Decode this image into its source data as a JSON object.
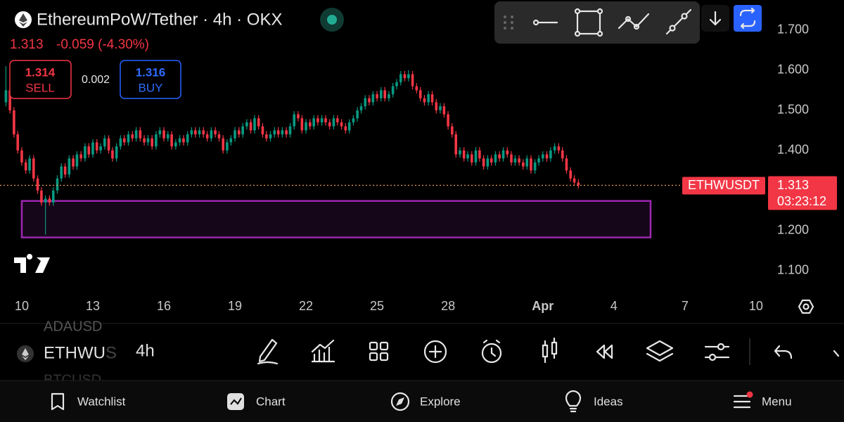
{
  "header": {
    "title": "EthereumPoW/Tether · 4h · OKX",
    "last": "1.313",
    "change": "-0.059 (-4.30%)",
    "sell_price": "1.314",
    "sell": "SELL",
    "spread": "0.002",
    "buy_price": "1.316",
    "buy": "BUY"
  },
  "chart_data": {
    "type": "candlestick",
    "symbol_label": "ETHWUSDT",
    "countdown": "03:23:12",
    "last_price": 1.313,
    "up_color": "#089981",
    "down_color": "#f23645",
    "xlim": [
      9.08,
      41.45
    ],
    "ylim": [
      1.042,
      1.775
    ],
    "xticks": [
      10,
      13,
      16,
      19,
      22,
      25,
      28,
      {
        "value": 32,
        "label": "Apr"
      },
      {
        "value": 35,
        "label": "4"
      },
      {
        "value": 38,
        "label": "7"
      },
      {
        "value": 41,
        "label": "10"
      }
    ],
    "yticks": [
      {
        "value": 1.1,
        "label": "1.100"
      },
      {
        "value": 1.2,
        "label": "1.200"
      },
      {
        "value": 1.3,
        "label": "1.300"
      },
      {
        "value": 1.4,
        "label": "1.400"
      },
      {
        "value": 1.5,
        "label": "1.500"
      },
      {
        "value": 1.6,
        "label": "1.600"
      },
      {
        "value": 1.7,
        "label": "1.700"
      }
    ],
    "zone": {
      "x0": 10,
      "x1": 36.55,
      "y0": 1.183,
      "y1": 1.274
    },
    "candles": [
      [
        9.33,
        1.52,
        1.61,
        1.51,
        1.55
      ],
      [
        9.5,
        1.55,
        1.558,
        1.492,
        1.5
      ],
      [
        9.67,
        1.5,
        1.508,
        1.432,
        1.44
      ],
      [
        9.83,
        1.44,
        1.448,
        1.392,
        1.4
      ],
      [
        10,
        1.4,
        1.408,
        1.362,
        1.37
      ],
      [
        10.17,
        1.37,
        1.378,
        1.342,
        1.35
      ],
      [
        10.33,
        1.35,
        1.388,
        1.342,
        1.38
      ],
      [
        10.5,
        1.38,
        1.388,
        1.322,
        1.33
      ],
      [
        10.67,
        1.33,
        1.338,
        1.292,
        1.3
      ],
      [
        10.83,
        1.3,
        1.308,
        1.262,
        1.27
      ],
      [
        11,
        1.27,
        1.288,
        1.19,
        1.28
      ],
      [
        11.17,
        1.28,
        1.288,
        1.262,
        1.27
      ],
      [
        11.33,
        1.27,
        1.308,
        1.262,
        1.3
      ],
      [
        11.5,
        1.3,
        1.338,
        1.292,
        1.33
      ],
      [
        11.67,
        1.33,
        1.368,
        1.322,
        1.36
      ],
      [
        11.83,
        1.36,
        1.368,
        1.332,
        1.34
      ],
      [
        12,
        1.34,
        1.388,
        1.332,
        1.38
      ],
      [
        12.17,
        1.38,
        1.388,
        1.352,
        1.36
      ],
      [
        12.33,
        1.36,
        1.398,
        1.352,
        1.39
      ],
      [
        12.5,
        1.39,
        1.398,
        1.372,
        1.38
      ],
      [
        12.67,
        1.38,
        1.418,
        1.372,
        1.41
      ],
      [
        12.83,
        1.41,
        1.418,
        1.382,
        1.39
      ],
      [
        13,
        1.39,
        1.428,
        1.382,
        1.42
      ],
      [
        13.17,
        1.42,
        1.428,
        1.392,
        1.4
      ],
      [
        13.33,
        1.4,
        1.418,
        1.392,
        1.41
      ],
      [
        13.5,
        1.41,
        1.438,
        1.402,
        1.43
      ],
      [
        13.67,
        1.43,
        1.438,
        1.392,
        1.4
      ],
      [
        13.83,
        1.4,
        1.408,
        1.372,
        1.38
      ],
      [
        14,
        1.38,
        1.418,
        1.372,
        1.41
      ],
      [
        14.17,
        1.41,
        1.438,
        1.402,
        1.43
      ],
      [
        14.33,
        1.43,
        1.438,
        1.412,
        1.42
      ],
      [
        14.5,
        1.42,
        1.448,
        1.412,
        1.44
      ],
      [
        14.67,
        1.44,
        1.448,
        1.422,
        1.43
      ],
      [
        14.83,
        1.43,
        1.458,
        1.422,
        1.45
      ],
      [
        15,
        1.45,
        1.458,
        1.422,
        1.43
      ],
      [
        15.17,
        1.43,
        1.438,
        1.412,
        1.42
      ],
      [
        15.33,
        1.42,
        1.438,
        1.412,
        1.43
      ],
      [
        15.5,
        1.43,
        1.438,
        1.402,
        1.41
      ],
      [
        15.67,
        1.41,
        1.448,
        1.402,
        1.44
      ],
      [
        15.83,
        1.44,
        1.458,
        1.432,
        1.45
      ],
      [
        16,
        1.45,
        1.458,
        1.422,
        1.43
      ],
      [
        16.17,
        1.43,
        1.448,
        1.422,
        1.44
      ],
      [
        16.33,
        1.44,
        1.448,
        1.402,
        1.41
      ],
      [
        16.5,
        1.41,
        1.428,
        1.402,
        1.42
      ],
      [
        16.67,
        1.42,
        1.438,
        1.412,
        1.43
      ],
      [
        16.83,
        1.43,
        1.438,
        1.412,
        1.42
      ],
      [
        17,
        1.42,
        1.448,
        1.412,
        1.44
      ],
      [
        17.17,
        1.44,
        1.458,
        1.432,
        1.45
      ],
      [
        17.33,
        1.45,
        1.458,
        1.432,
        1.44
      ],
      [
        17.5,
        1.44,
        1.458,
        1.432,
        1.45
      ],
      [
        17.67,
        1.45,
        1.458,
        1.432,
        1.44
      ],
      [
        17.83,
        1.44,
        1.448,
        1.422,
        1.43
      ],
      [
        18,
        1.43,
        1.458,
        1.422,
        1.45
      ],
      [
        18.17,
        1.45,
        1.458,
        1.432,
        1.44
      ],
      [
        18.33,
        1.44,
        1.448,
        1.422,
        1.43
      ],
      [
        18.5,
        1.43,
        1.438,
        1.392,
        1.4
      ],
      [
        18.67,
        1.4,
        1.428,
        1.392,
        1.42
      ],
      [
        18.83,
        1.42,
        1.438,
        1.412,
        1.43
      ],
      [
        19,
        1.43,
        1.458,
        1.422,
        1.45
      ],
      [
        19.17,
        1.45,
        1.458,
        1.432,
        1.44
      ],
      [
        19.33,
        1.44,
        1.468,
        1.432,
        1.46
      ],
      [
        19.5,
        1.46,
        1.478,
        1.452,
        1.47
      ],
      [
        19.67,
        1.47,
        1.478,
        1.442,
        1.45
      ],
      [
        19.83,
        1.45,
        1.488,
        1.442,
        1.48
      ],
      [
        20,
        1.48,
        1.488,
        1.452,
        1.46
      ],
      [
        20.17,
        1.46,
        1.468,
        1.432,
        1.44
      ],
      [
        20.33,
        1.44,
        1.448,
        1.422,
        1.43
      ],
      [
        20.5,
        1.43,
        1.448,
        1.422,
        1.44
      ],
      [
        20.67,
        1.44,
        1.458,
        1.432,
        1.45
      ],
      [
        20.83,
        1.45,
        1.458,
        1.432,
        1.44
      ],
      [
        21,
        1.44,
        1.458,
        1.432,
        1.45
      ],
      [
        21.17,
        1.45,
        1.458,
        1.432,
        1.44
      ],
      [
        21.33,
        1.44,
        1.468,
        1.432,
        1.46
      ],
      [
        21.5,
        1.46,
        1.498,
        1.452,
        1.49
      ],
      [
        21.67,
        1.49,
        1.498,
        1.472,
        1.48
      ],
      [
        21.83,
        1.48,
        1.488,
        1.442,
        1.45
      ],
      [
        22,
        1.45,
        1.478,
        1.442,
        1.47
      ],
      [
        22.17,
        1.47,
        1.478,
        1.452,
        1.46
      ],
      [
        22.33,
        1.46,
        1.488,
        1.452,
        1.48
      ],
      [
        22.5,
        1.48,
        1.488,
        1.462,
        1.47
      ],
      [
        22.67,
        1.47,
        1.488,
        1.462,
        1.48
      ],
      [
        22.83,
        1.48,
        1.488,
        1.462,
        1.47
      ],
      [
        23,
        1.47,
        1.478,
        1.452,
        1.46
      ],
      [
        23.17,
        1.46,
        1.488,
        1.452,
        1.48
      ],
      [
        23.33,
        1.48,
        1.488,
        1.462,
        1.47
      ],
      [
        23.5,
        1.47,
        1.478,
        1.452,
        1.46
      ],
      [
        23.67,
        1.46,
        1.468,
        1.442,
        1.45
      ],
      [
        23.83,
        1.45,
        1.478,
        1.442,
        1.47
      ],
      [
        24,
        1.47,
        1.488,
        1.462,
        1.48
      ],
      [
        24.17,
        1.48,
        1.508,
        1.472,
        1.5
      ],
      [
        24.33,
        1.5,
        1.518,
        1.492,
        1.51
      ],
      [
        24.5,
        1.51,
        1.538,
        1.502,
        1.53
      ],
      [
        24.67,
        1.53,
        1.538,
        1.512,
        1.52
      ],
      [
        24.83,
        1.52,
        1.548,
        1.512,
        1.54
      ],
      [
        25,
        1.54,
        1.548,
        1.522,
        1.53
      ],
      [
        25.17,
        1.53,
        1.558,
        1.522,
        1.55
      ],
      [
        25.33,
        1.55,
        1.558,
        1.522,
        1.53
      ],
      [
        25.5,
        1.53,
        1.548,
        1.522,
        1.54
      ],
      [
        25.67,
        1.54,
        1.568,
        1.532,
        1.56
      ],
      [
        25.83,
        1.56,
        1.578,
        1.552,
        1.57
      ],
      [
        26,
        1.57,
        1.598,
        1.562,
        1.59
      ],
      [
        26.17,
        1.59,
        1.598,
        1.572,
        1.58
      ],
      [
        26.33,
        1.58,
        1.6,
        1.572,
        1.59
      ],
      [
        26.5,
        1.59,
        1.598,
        1.552,
        1.56
      ],
      [
        26.67,
        1.56,
        1.568,
        1.542,
        1.55
      ],
      [
        26.83,
        1.55,
        1.558,
        1.522,
        1.53
      ],
      [
        27,
        1.53,
        1.538,
        1.512,
        1.52
      ],
      [
        27.17,
        1.52,
        1.548,
        1.512,
        1.54
      ],
      [
        27.33,
        1.54,
        1.548,
        1.512,
        1.52
      ],
      [
        27.5,
        1.52,
        1.528,
        1.492,
        1.5
      ],
      [
        27.67,
        1.5,
        1.518,
        1.492,
        1.51
      ],
      [
        27.83,
        1.51,
        1.518,
        1.482,
        1.49
      ],
      [
        28,
        1.49,
        1.498,
        1.452,
        1.46
      ],
      [
        28.17,
        1.46,
        1.468,
        1.432,
        1.44
      ],
      [
        28.33,
        1.44,
        1.448,
        1.382,
        1.39
      ],
      [
        28.5,
        1.39,
        1.408,
        1.382,
        1.4
      ],
      [
        28.67,
        1.4,
        1.408,
        1.372,
        1.38
      ],
      [
        28.83,
        1.38,
        1.398,
        1.372,
        1.39
      ],
      [
        29,
        1.39,
        1.398,
        1.362,
        1.37
      ],
      [
        29.17,
        1.37,
        1.408,
        1.362,
        1.4
      ],
      [
        29.33,
        1.4,
        1.408,
        1.372,
        1.38
      ],
      [
        29.5,
        1.38,
        1.388,
        1.352,
        1.36
      ],
      [
        29.67,
        1.36,
        1.388,
        1.352,
        1.38
      ],
      [
        29.83,
        1.38,
        1.388,
        1.362,
        1.37
      ],
      [
        30,
        1.37,
        1.398,
        1.362,
        1.39
      ],
      [
        30.17,
        1.39,
        1.398,
        1.372,
        1.38
      ],
      [
        30.33,
        1.38,
        1.408,
        1.372,
        1.4
      ],
      [
        30.5,
        1.4,
        1.408,
        1.382,
        1.39
      ],
      [
        30.67,
        1.39,
        1.398,
        1.362,
        1.37
      ],
      [
        30.83,
        1.37,
        1.388,
        1.362,
        1.38
      ],
      [
        31,
        1.38,
        1.388,
        1.362,
        1.37
      ],
      [
        31.17,
        1.37,
        1.378,
        1.352,
        1.36
      ],
      [
        31.33,
        1.36,
        1.388,
        1.352,
        1.38
      ],
      [
        31.5,
        1.38,
        1.388,
        1.342,
        1.35
      ],
      [
        31.67,
        1.35,
        1.378,
        1.342,
        1.37
      ],
      [
        31.83,
        1.37,
        1.388,
        1.362,
        1.38
      ],
      [
        32,
        1.38,
        1.398,
        1.372,
        1.39
      ],
      [
        32.17,
        1.39,
        1.398,
        1.372,
        1.38
      ],
      [
        32.33,
        1.38,
        1.408,
        1.372,
        1.4
      ],
      [
        32.5,
        1.4,
        1.418,
        1.392,
        1.41
      ],
      [
        32.67,
        1.41,
        1.418,
        1.392,
        1.4
      ],
      [
        32.83,
        1.4,
        1.408,
        1.372,
        1.38
      ],
      [
        33,
        1.38,
        1.388,
        1.342,
        1.35
      ],
      [
        33.17,
        1.35,
        1.358,
        1.322,
        1.33
      ],
      [
        33.33,
        1.33,
        1.338,
        1.312,
        1.32
      ],
      [
        33.5,
        1.32,
        1.328,
        1.305,
        1.313
      ]
    ]
  },
  "toolbar": {
    "symbol_above": "ADAUSD",
    "symbol": "ETHWUS",
    "symbol_below": "BTCUSD",
    "interval": "4h"
  },
  "nav": [
    "Watchlist",
    "Chart",
    "Explore",
    "Ideas",
    "Menu"
  ]
}
